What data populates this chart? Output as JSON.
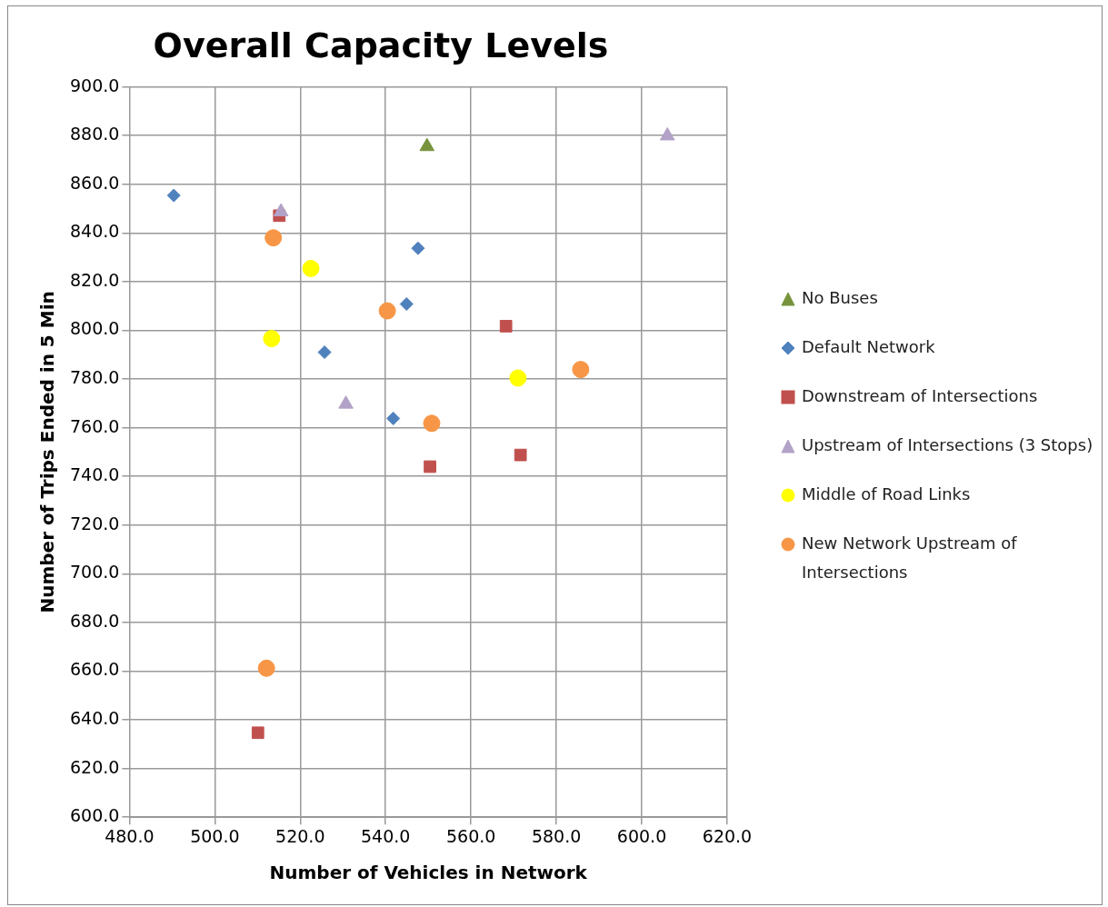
{
  "chart_data": {
    "type": "scatter",
    "title": "Overall Capacity Levels",
    "xlabel": "Number of Vehicles in Network",
    "ylabel": "Number of Trips Ended in 5 Min",
    "xlim": [
      480,
      620
    ],
    "ylim": [
      600,
      900
    ],
    "xticks": [
      {
        "value": 480,
        "label": "480.0"
      },
      {
        "value": 500,
        "label": "500.0"
      },
      {
        "value": 520,
        "label": "520.0"
      },
      {
        "value": 540,
        "label": "540.0"
      },
      {
        "value": 560,
        "label": "560.0"
      },
      {
        "value": 580,
        "label": "580.0"
      },
      {
        "value": 600,
        "label": "600.0"
      },
      {
        "value": 620,
        "label": "620.0"
      }
    ],
    "yticks": [
      {
        "value": 600,
        "label": "600.0"
      },
      {
        "value": 620,
        "label": "620.0"
      },
      {
        "value": 640,
        "label": "640.0"
      },
      {
        "value": 660,
        "label": "660.0"
      },
      {
        "value": 680,
        "label": "680.0"
      },
      {
        "value": 700,
        "label": "700.0"
      },
      {
        "value": 720,
        "label": "720.0"
      },
      {
        "value": 740,
        "label": "740.0"
      },
      {
        "value": 760,
        "label": "760.0"
      },
      {
        "value": 780,
        "label": "780.0"
      },
      {
        "value": 800,
        "label": "800.0"
      },
      {
        "value": 820,
        "label": "820.0"
      },
      {
        "value": 840,
        "label": "840.0"
      },
      {
        "value": 860,
        "label": "860.0"
      },
      {
        "value": 880,
        "label": "880.0"
      },
      {
        "value": 900,
        "label": "900.0"
      }
    ],
    "grid": true,
    "legend": "right",
    "series": [
      {
        "name": "No Buses",
        "color": "#77933c",
        "marker": "triangle",
        "x": [
          549.7
        ],
        "values": [
          875.5
        ]
      },
      {
        "name": "Default Network",
        "color": "#4f81bd",
        "marker": "diamond",
        "x": [
          490.4,
          547.6,
          544.9,
          525.7,
          541.8
        ],
        "values": [
          855.4,
          833.7,
          810.8,
          791,
          763.8
        ]
      },
      {
        "name": "Downstream of Intersections",
        "color": "#c0504d",
        "marker": "square",
        "x": [
          515.1,
          568.2,
          571.6,
          550.4,
          510.1
        ],
        "values": [
          847.1,
          801.7,
          748.8,
          744,
          634.7
        ]
      },
      {
        "name": "Upstream of Intersections (3 Stops)",
        "color": "#b3a2c7",
        "marker": "triangle",
        "x": [
          515.5,
          530.7,
          606
        ],
        "values": [
          848.7,
          769.7,
          879.9
        ]
      },
      {
        "name": "Middle of Road Links",
        "color": "#ffff00",
        "marker": "circle",
        "x": [
          522.5,
          513.3,
          571
        ],
        "values": [
          825.4,
          796.6,
          780.4
        ]
      },
      {
        "name": "New Network Upstream of Intersections",
        "color": "#f79646",
        "marker": "circle",
        "x": [
          513.7,
          540.4,
          585.7,
          550.8,
          512.1
        ],
        "values": [
          838,
          808,
          783.9,
          761.8,
          661.2
        ]
      }
    ]
  }
}
